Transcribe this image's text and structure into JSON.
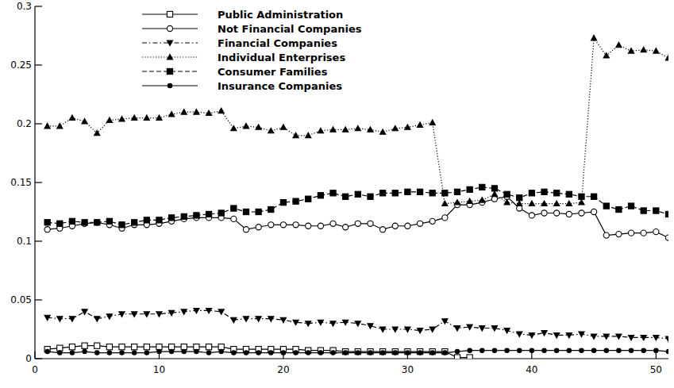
{
  "chart_data": {
    "type": "line",
    "x": [
      1,
      2,
      3,
      4,
      5,
      6,
      7,
      8,
      9,
      10,
      11,
      12,
      13,
      14,
      15,
      16,
      17,
      18,
      19,
      20,
      21,
      22,
      23,
      24,
      25,
      26,
      27,
      28,
      29,
      30,
      31,
      32,
      33,
      34,
      35,
      36,
      37,
      38,
      39,
      40,
      41,
      42,
      43,
      44,
      45,
      46,
      47,
      48,
      49,
      50,
      51
    ],
    "xlim": [
      0,
      51
    ],
    "xticks": [
      0,
      10,
      20,
      30,
      40,
      50
    ],
    "ylim": [
      0,
      0.3
    ],
    "yticks": [
      0,
      0.05,
      0.1,
      0.15,
      0.2,
      0.25,
      0.3
    ],
    "grid": false,
    "legend": "top-left",
    "series": [
      {
        "name": "Public Administration",
        "color": "#000000",
        "marker": "square-open",
        "line_style": "solid",
        "values": [
          0.008,
          0.009,
          0.01,
          0.011,
          0.011,
          0.01,
          0.01,
          0.01,
          0.01,
          0.01,
          0.01,
          0.01,
          0.01,
          0.01,
          0.01,
          0.008,
          0.008,
          0.008,
          0.008,
          0.008,
          0.008,
          0.007,
          0.007,
          0.007,
          0.006,
          0.006,
          0.006,
          0.006,
          0.006,
          0.006,
          0.006,
          0.006,
          0.006,
          0.001,
          0.001,
          null,
          null,
          null,
          null,
          null,
          null,
          null,
          null,
          null,
          null,
          null,
          null,
          null,
          null,
          null,
          null
        ]
      },
      {
        "name": "Not Financial Companies",
        "color": "#000000",
        "marker": "circle-open",
        "line_style": "solid",
        "values": [
          0.11,
          0.111,
          0.113,
          0.115,
          0.116,
          0.114,
          0.111,
          0.114,
          0.114,
          0.115,
          0.117,
          0.119,
          0.12,
          0.12,
          0.12,
          0.119,
          0.11,
          0.112,
          0.114,
          0.114,
          0.114,
          0.113,
          0.113,
          0.115,
          0.112,
          0.115,
          0.115,
          0.11,
          0.113,
          0.113,
          0.115,
          0.117,
          0.12,
          0.131,
          0.131,
          0.133,
          0.136,
          0.138,
          0.128,
          0.122,
          0.124,
          0.124,
          0.123,
          0.124,
          0.125,
          0.105,
          0.106,
          0.107,
          0.107,
          0.108,
          0.103
        ]
      },
      {
        "name": "Financial Companies",
        "color": "#000000",
        "marker": "triangle-down",
        "line_style": "dashdot",
        "values": [
          0.035,
          0.034,
          0.034,
          0.04,
          0.034,
          0.036,
          0.038,
          0.038,
          0.038,
          0.038,
          0.039,
          0.04,
          0.041,
          0.041,
          0.04,
          0.033,
          0.034,
          0.034,
          0.034,
          0.033,
          0.031,
          0.03,
          0.031,
          0.03,
          0.031,
          0.03,
          0.028,
          0.025,
          0.025,
          0.025,
          0.024,
          0.025,
          0.032,
          0.026,
          0.027,
          0.026,
          0.026,
          0.024,
          0.021,
          0.02,
          0.022,
          0.02,
          0.02,
          0.021,
          0.019,
          0.019,
          0.019,
          0.018,
          0.018,
          0.018,
          0.017
        ]
      },
      {
        "name": "Individual Enterprises",
        "color": "#000000",
        "marker": "triangle",
        "line_style": "dotted",
        "values": [
          0.198,
          0.198,
          0.205,
          0.202,
          0.192,
          0.203,
          0.204,
          0.205,
          0.205,
          0.205,
          0.208,
          0.21,
          0.21,
          0.209,
          0.211,
          0.196,
          0.198,
          0.197,
          0.194,
          0.197,
          0.19,
          0.19,
          0.194,
          0.195,
          0.195,
          0.196,
          0.195,
          0.193,
          0.196,
          0.197,
          0.199,
          0.201,
          0.132,
          0.133,
          0.134,
          0.135,
          0.14,
          0.133,
          0.132,
          0.132,
          0.132,
          0.132,
          0.132,
          0.133,
          0.273,
          0.258,
          0.267,
          0.262,
          0.263,
          0.262,
          0.256
        ]
      },
      {
        "name": "Consumer Families",
        "color": "#000000",
        "marker": "square",
        "line_style": "dashed",
        "values": [
          0.116,
          0.115,
          0.117,
          0.116,
          0.116,
          0.117,
          0.114,
          0.116,
          0.118,
          0.118,
          0.12,
          0.121,
          0.122,
          0.123,
          0.124,
          0.128,
          0.125,
          0.125,
          0.127,
          0.133,
          0.134,
          0.136,
          0.139,
          0.141,
          0.138,
          0.14,
          0.138,
          0.141,
          0.141,
          0.142,
          0.142,
          0.141,
          0.141,
          0.142,
          0.144,
          0.146,
          0.145,
          0.14,
          0.137,
          0.141,
          0.142,
          0.141,
          0.14,
          0.138,
          0.138,
          0.13,
          0.127,
          0.13,
          0.126,
          0.126,
          0.123
        ]
      },
      {
        "name": "Insurance Companies",
        "color": "#000000",
        "marker": "circle",
        "line_style": "solid",
        "values": [
          0.006,
          0.005,
          0.005,
          0.006,
          0.005,
          0.005,
          0.005,
          0.005,
          0.005,
          0.006,
          0.006,
          0.006,
          0.006,
          0.005,
          0.006,
          0.005,
          0.005,
          0.005,
          0.005,
          0.005,
          0.005,
          0.005,
          0.005,
          0.005,
          0.005,
          0.005,
          0.005,
          0.005,
          0.005,
          0.005,
          0.005,
          0.005,
          0.005,
          0.006,
          0.007,
          0.007,
          0.007,
          0.007,
          0.007,
          0.007,
          0.007,
          0.007,
          0.007,
          0.007,
          0.007,
          0.007,
          0.007,
          0.007,
          0.007,
          0.007,
          0.006
        ]
      }
    ]
  }
}
